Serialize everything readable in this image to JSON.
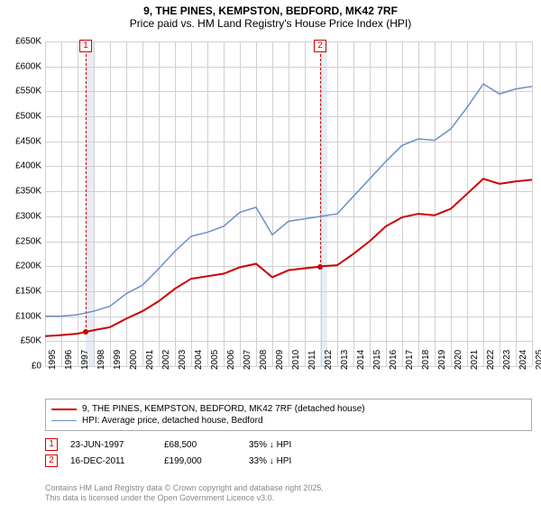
{
  "title": {
    "line1": "9, THE PINES, KEMPSTON, BEDFORD, MK42 7RF",
    "line2": "Price paid vs. HM Land Registry's House Price Index (HPI)"
  },
  "chart": {
    "type": "line",
    "background_color": "#ffffff",
    "grid_color": "#d0d0d0",
    "shaded_fill": "#e8edf5",
    "x_start": 1995,
    "x_end": 2025,
    "x_tick_step": 1,
    "y_start": 0,
    "y_end": 650,
    "y_tick_step": 50,
    "y_tick_prefix": "£",
    "y_tick_suffix": "K",
    "shaded_ranges": [
      {
        "from": 1997.5,
        "to": 1998.0
      },
      {
        "from": 2011.95,
        "to": 2012.4
      }
    ],
    "series": [
      {
        "id": "property",
        "label": "9, THE PINES, KEMPSTON, BEDFORD, MK42 7RF (detached house)",
        "color": "#cc0000",
        "width": 2,
        "points": [
          [
            1995,
            60
          ],
          [
            1996,
            62
          ],
          [
            1997,
            65
          ],
          [
            1997.5,
            68.5
          ],
          [
            1998,
            72
          ],
          [
            1999,
            78
          ],
          [
            2000,
            95
          ],
          [
            2001,
            110
          ],
          [
            2002,
            130
          ],
          [
            2003,
            155
          ],
          [
            2004,
            175
          ],
          [
            2005,
            180
          ],
          [
            2006,
            185
          ],
          [
            2007,
            198
          ],
          [
            2008,
            205
          ],
          [
            2009,
            178
          ],
          [
            2010,
            192
          ],
          [
            2011,
            196
          ],
          [
            2011.95,
            199
          ],
          [
            2012,
            200
          ],
          [
            2013,
            202
          ],
          [
            2014,
            225
          ],
          [
            2015,
            250
          ],
          [
            2016,
            280
          ],
          [
            2017,
            298
          ],
          [
            2018,
            305
          ],
          [
            2019,
            302
          ],
          [
            2020,
            315
          ],
          [
            2021,
            345
          ],
          [
            2022,
            375
          ],
          [
            2023,
            365
          ],
          [
            2024,
            370
          ],
          [
            2025,
            373
          ]
        ]
      },
      {
        "id": "hpi",
        "label": "HPI: Average price, detached house, Bedford",
        "color": "#6b8fc7",
        "width": 1.5,
        "points": [
          [
            1995,
            100
          ],
          [
            1996,
            100
          ],
          [
            1997,
            103
          ],
          [
            1998,
            110
          ],
          [
            1999,
            120
          ],
          [
            2000,
            145
          ],
          [
            2001,
            162
          ],
          [
            2002,
            195
          ],
          [
            2003,
            230
          ],
          [
            2004,
            260
          ],
          [
            2005,
            268
          ],
          [
            2006,
            280
          ],
          [
            2007,
            308
          ],
          [
            2008,
            318
          ],
          [
            2009,
            263
          ],
          [
            2010,
            290
          ],
          [
            2011,
            295
          ],
          [
            2012,
            300
          ],
          [
            2013,
            305
          ],
          [
            2014,
            340
          ],
          [
            2015,
            375
          ],
          [
            2016,
            410
          ],
          [
            2017,
            442
          ],
          [
            2018,
            455
          ],
          [
            2019,
            452
          ],
          [
            2020,
            475
          ],
          [
            2021,
            518
          ],
          [
            2022,
            565
          ],
          [
            2023,
            545
          ],
          [
            2024,
            555
          ],
          [
            2025,
            560
          ]
        ]
      }
    ],
    "sale_markers": [
      {
        "id": "1",
        "x": 1997.5,
        "y": 68.5
      },
      {
        "id": "2",
        "x": 2011.95,
        "y": 199
      }
    ]
  },
  "legend": {
    "rows": [
      {
        "color": "#cc0000",
        "width": 2,
        "label_ref": "chart.series.0.label"
      },
      {
        "color": "#6b8fc7",
        "width": 1.5,
        "label_ref": "chart.series.1.label"
      }
    ]
  },
  "sales": [
    {
      "marker": "1",
      "date": "23-JUN-1997",
      "price": "£68,500",
      "pct": "35% ↓ HPI"
    },
    {
      "marker": "2",
      "date": "16-DEC-2011",
      "price": "£199,000",
      "pct": "33% ↓ HPI"
    }
  ],
  "footer": {
    "line1": "Contains HM Land Registry data © Crown copyright and database right 2025.",
    "line2": "This data is licensed under the Open Government Licence v3.0."
  }
}
